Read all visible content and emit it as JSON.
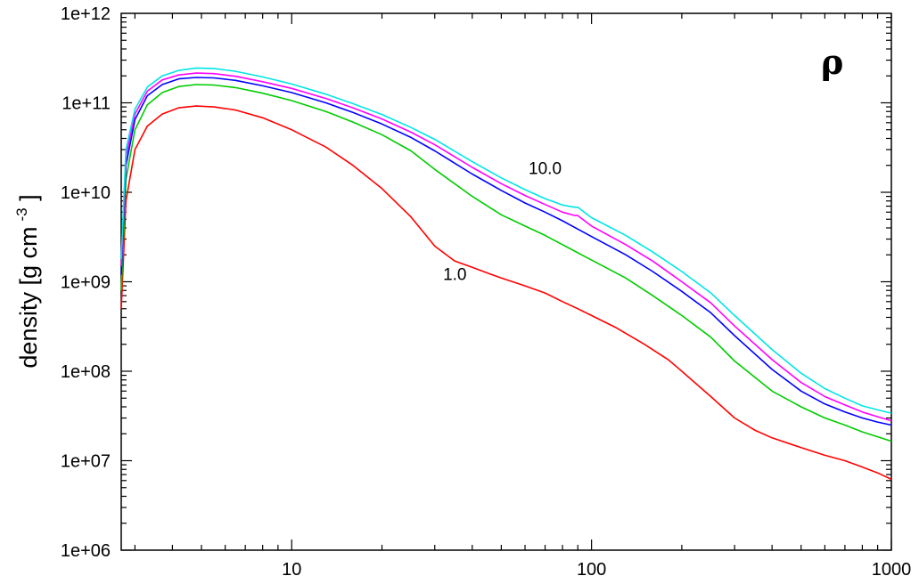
{
  "chart_data": {
    "type": "line",
    "title": "",
    "symbol": "ρ",
    "xlabel": "",
    "ylabel": "density [g cm -3 ]",
    "ylabel_parts": {
      "main": "density [g cm",
      "exp": "-3",
      "close": " ]"
    },
    "x_scale": "log",
    "y_scale": "log",
    "xlim": [
      2.7,
      1000
    ],
    "ylim": [
      1000000.0,
      1000000000000.0
    ],
    "x_ticks": [
      {
        "value": 10,
        "label": "10"
      },
      {
        "value": 100,
        "label": "100"
      },
      {
        "value": 1000,
        "label": "1000"
      }
    ],
    "y_ticks": [
      {
        "value": 1000000.0,
        "label": "1e+06"
      },
      {
        "value": 10000000.0,
        "label": "1e+07"
      },
      {
        "value": 100000000.0,
        "label": "1e+08"
      },
      {
        "value": 1000000000.0,
        "label": "1e+09"
      },
      {
        "value": 10000000000.0,
        "label": "1e+10"
      },
      {
        "value": 100000000000.0,
        "label": "1e+11"
      },
      {
        "value": 1000000000000.0,
        "label": "1e+12"
      }
    ],
    "grid": false,
    "legend": "none",
    "annotations": [
      {
        "text": "10.0",
        "x": 70,
        "y": 16000000000.0
      },
      {
        "text": "1.0",
        "x": 35,
        "y": 1050000000.0
      }
    ],
    "series": [
      {
        "color": "#ff0000",
        "x": [
          2.7,
          2.8,
          3.0,
          3.3,
          3.7,
          4.2,
          4.8,
          5.5,
          6.5,
          8,
          10,
          13,
          16,
          20,
          25,
          30,
          35,
          40,
          45,
          50,
          60,
          70,
          80,
          90,
          100,
          120,
          150,
          180,
          200,
          250,
          300,
          350,
          400,
          500,
          600,
          700,
          800,
          900,
          1000
        ],
        "y": [
          500000000.0,
          8000000000.0,
          30000000000.0,
          55000000000.0,
          75000000000.0,
          88000000000.0,
          92000000000.0,
          90000000000.0,
          83000000000.0,
          68000000000.0,
          50000000000.0,
          32000000000.0,
          20000000000.0,
          11000000000.0,
          5300000000.0,
          2500000000.0,
          1700000000.0,
          1450000000.0,
          1250000000.0,
          1100000000.0,
          900000000.0,
          750000000.0,
          600000000.0,
          500000000.0,
          420000000.0,
          310000000.0,
          200000000.0,
          135000000.0,
          100000000.0,
          52000000.0,
          30000000.0,
          22000000.0,
          18000000.0,
          14000000.0,
          11500000.0,
          10000000.0,
          8500000.0,
          7300000.0,
          6200000.0
        ]
      },
      {
        "color": "#00cc00",
        "x": [
          2.7,
          2.8,
          3.0,
          3.3,
          3.7,
          4.2,
          4.8,
          5.5,
          6.5,
          8,
          10,
          13,
          16,
          20,
          25,
          30,
          40,
          50,
          60,
          70,
          80,
          100,
          130,
          160,
          200,
          250,
          300,
          400,
          500,
          600,
          700,
          800,
          900,
          1000
        ],
        "y": [
          800000000.0,
          14000000000.0,
          50000000000.0,
          95000000000.0,
          130000000000.0,
          152000000000.0,
          160000000000.0,
          158000000000.0,
          148000000000.0,
          128000000000.0,
          106000000000.0,
          80000000000.0,
          61000000000.0,
          44000000000.0,
          29000000000.0,
          18000000000.0,
          9000000000.0,
          5600000000.0,
          4200000000.0,
          3300000000.0,
          2600000000.0,
          1750000000.0,
          1100000000.0,
          700000000.0,
          420000000.0,
          240000000.0,
          130000000.0,
          60000000.0,
          40000000.0,
          30000000.0,
          25000000.0,
          21000000.0,
          18500000.0,
          16500000.0
        ]
      },
      {
        "color": "#0000ff",
        "x": [
          2.7,
          2.8,
          3.0,
          3.3,
          3.7,
          4.2,
          4.8,
          5.5,
          6.5,
          8,
          10,
          13,
          16,
          20,
          25,
          30,
          40,
          50,
          60,
          70,
          80,
          100,
          130,
          160,
          200,
          250,
          300,
          400,
          500,
          600,
          700,
          800,
          900,
          1000
        ],
        "y": [
          1200000000.0,
          20000000000.0,
          65000000000.0,
          120000000000.0,
          160000000000.0,
          185000000000.0,
          192000000000.0,
          190000000000.0,
          178000000000.0,
          155000000000.0,
          130000000000.0,
          100000000000.0,
          78000000000.0,
          58000000000.0,
          41000000000.0,
          29000000000.0,
          16000000000.0,
          10500000000.0,
          7600000000.0,
          6000000000.0,
          4800000000.0,
          3200000000.0,
          2000000000.0,
          1300000000.0,
          780000000.0,
          450000000.0,
          250000000.0,
          105000000.0,
          60000000.0,
          43000000.0,
          35000000.0,
          30000000.0,
          27000000.0,
          25000000.0
        ]
      },
      {
        "color": "#ff00ff",
        "x": [
          2.7,
          2.8,
          3.0,
          3.3,
          3.7,
          4.2,
          4.8,
          5.5,
          6.5,
          8,
          10,
          13,
          16,
          20,
          25,
          30,
          40,
          50,
          60,
          70,
          80,
          88,
          90,
          100,
          130,
          160,
          200,
          250,
          300,
          400,
          500,
          600,
          700,
          800,
          900,
          1000
        ],
        "y": [
          1500000000.0,
          25000000000.0,
          75000000000.0,
          135000000000.0,
          180000000000.0,
          205000000000.0,
          215000000000.0,
          212000000000.0,
          198000000000.0,
          172000000000.0,
          145000000000.0,
          112000000000.0,
          88000000000.0,
          66000000000.0,
          47000000000.0,
          34000000000.0,
          19000000000.0,
          12500000000.0,
          9200000000.0,
          7300000000.0,
          6000000000.0,
          5500000000.0,
          5500000000.0,
          4200000000.0,
          2600000000.0,
          1700000000.0,
          1000000000.0,
          580000000.0,
          320000000.0,
          135000000.0,
          75000000.0,
          52000000.0,
          42000000.0,
          35000000.0,
          31000000.0,
          28000000.0
        ]
      },
      {
        "color": "#00e5e5",
        "x": [
          2.7,
          2.8,
          3.0,
          3.3,
          3.7,
          4.2,
          4.8,
          5.5,
          6.5,
          8,
          10,
          13,
          16,
          20,
          25,
          30,
          40,
          50,
          60,
          70,
          80,
          88,
          90,
          100,
          130,
          160,
          200,
          250,
          300,
          400,
          500,
          600,
          700,
          800,
          900,
          1000
        ],
        "y": [
          1800000000.0,
          30000000000.0,
          85000000000.0,
          150000000000.0,
          200000000000.0,
          230000000000.0,
          245000000000.0,
          242000000000.0,
          225000000000.0,
          195000000000.0,
          162000000000.0,
          125000000000.0,
          98000000000.0,
          74000000000.0,
          53000000000.0,
          39000000000.0,
          22000000000.0,
          14500000000.0,
          10700000000.0,
          8500000000.0,
          7200000000.0,
          6800000000.0,
          6800000000.0,
          5200000000.0,
          3300000000.0,
          2150000000.0,
          1300000000.0,
          750000000.0,
          420000000.0,
          175000000.0,
          95000000.0,
          64000000.0,
          50000000.0,
          41000000.0,
          37000000.0,
          34000000.0
        ]
      }
    ]
  }
}
